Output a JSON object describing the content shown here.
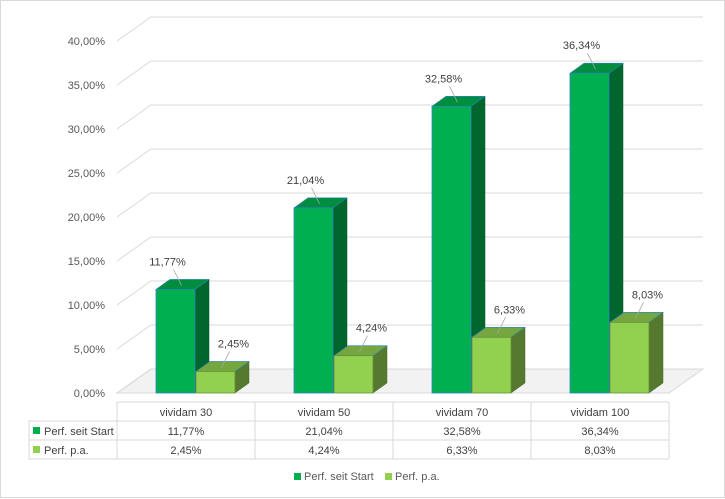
{
  "chart_data": {
    "type": "bar",
    "style": "3d-clustered-column-with-data-table",
    "categories": [
      "vividam 30",
      "vividam 50",
      "vividam 70",
      "vividam 100"
    ],
    "series": [
      {
        "name": "Perf. seit Start",
        "color": "#00B050",
        "values": [
          11.77,
          21.04,
          32.58,
          36.34
        ],
        "labels": [
          "11,77%",
          "21,04%",
          "32,58%",
          "36,34%"
        ]
      },
      {
        "name": "Perf. p.a.",
        "color": "#92D050",
        "values": [
          2.45,
          4.24,
          6.33,
          8.03
        ],
        "labels": [
          "2,45%",
          "4,24%",
          "6,33%",
          "8,03%"
        ]
      }
    ],
    "ylim": [
      0,
      40
    ],
    "ytick_labels": [
      "0,00%",
      "5,00%",
      "10,00%",
      "15,00%",
      "20,00%",
      "25,00%",
      "30,00%",
      "35,00%",
      "40,00%"
    ],
    "grid": true,
    "legend": "bottom"
  }
}
